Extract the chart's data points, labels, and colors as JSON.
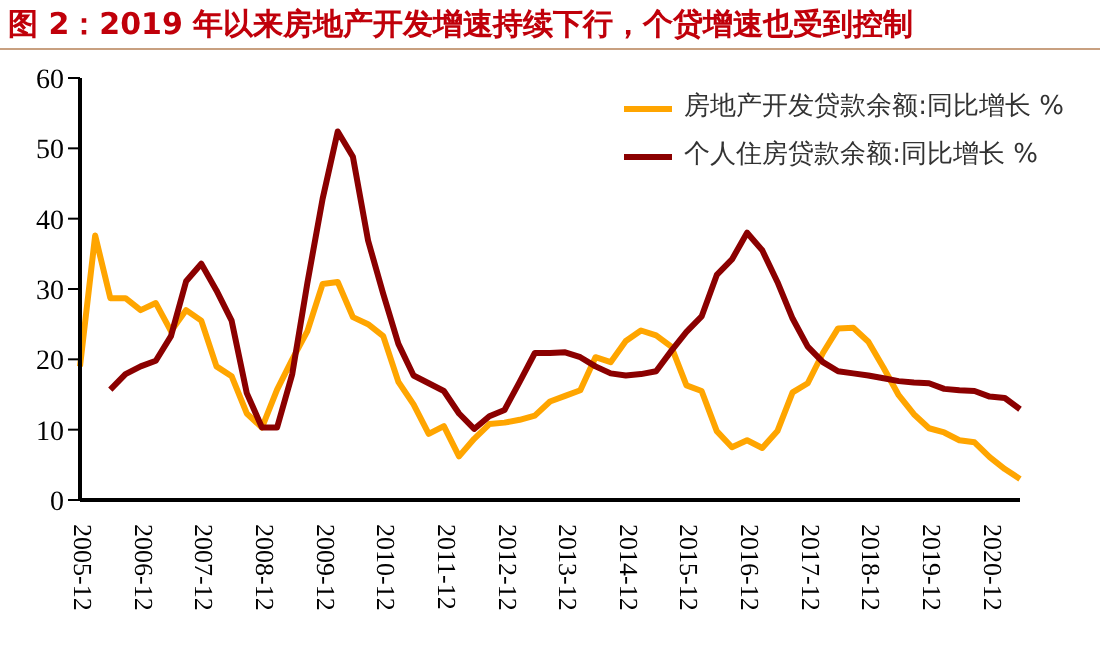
{
  "chart_data": {
    "type": "line",
    "title": "图 2：2019 年以来房地产开发增速持续下行，个贷增速也受到控制",
    "categories": [
      "2005-12",
      null,
      null,
      null,
      "2006-12",
      null,
      null,
      null,
      "2007-12",
      null,
      null,
      null,
      "2008-12",
      null,
      null,
      null,
      "2009-12",
      null,
      null,
      null,
      "2010-12",
      null,
      null,
      null,
      "2011-12",
      null,
      null,
      null,
      "2012-12",
      null,
      null,
      null,
      "2013-12",
      null,
      null,
      null,
      "2014-12",
      null,
      null,
      null,
      "2015-12",
      null,
      null,
      null,
      "2016-12",
      null,
      null,
      null,
      "2017-12",
      null,
      null,
      null,
      "2018-12",
      null,
      null,
      null,
      "2019-12",
      null,
      null,
      null,
      "2020-12",
      null,
      null
    ],
    "series": [
      {
        "name": "房地产开发贷款余额:同比增长 %",
        "color": "#ffa500",
        "values": [
          19,
          37.6,
          28.7,
          28.7,
          27,
          28,
          24,
          27,
          25.5,
          19,
          17.6,
          12.3,
          10.3,
          15.7,
          20,
          24,
          30.7,
          31,
          26,
          25,
          23.3,
          16.8,
          13.6,
          9.4,
          10.5,
          6.2,
          8.7,
          10.8,
          11,
          11.4,
          12,
          14,
          14.8,
          15.6,
          20.3,
          19.6,
          22.6,
          24.1,
          23.4,
          21.8,
          16.3,
          15.5,
          9.8,
          7.5,
          8.5,
          7.4,
          9.8,
          15.3,
          16.6,
          20.9,
          24.4,
          24.5,
          22.5,
          18.8,
          14.9,
          12.2,
          10.2,
          9.6,
          8.5,
          8.2,
          6.1,
          4.4,
          3
        ]
      },
      {
        "name": "个人住房贷款余额:同比增长 %",
        "color": "#8b0000",
        "values": [
          null,
          null,
          15.7,
          17.9,
          19,
          19.8,
          23.3,
          31.1,
          33.6,
          29.8,
          25.5,
          15.2,
          10.3,
          10.3,
          17.9,
          30.9,
          42.8,
          52.4,
          48.8,
          36.9,
          29.3,
          22.2,
          17.7,
          16.6,
          15.5,
          12.3,
          10.1,
          11.9,
          12.8,
          16.8,
          20.9,
          20.9,
          21,
          20.3,
          19,
          18,
          17.7,
          17.9,
          18.3,
          21.2,
          23.9,
          26.1,
          32,
          34.2,
          38,
          35.5,
          31,
          25.8,
          21.8,
          19.6,
          18.3,
          18,
          17.7,
          17.3,
          16.9,
          16.7,
          16.6,
          15.8,
          15.6,
          15.5,
          14.7,
          14.5,
          12.9
        ]
      }
    ],
    "ylim": [
      0,
      60
    ],
    "yticks": [
      0,
      10,
      20,
      30,
      40,
      50,
      60
    ],
    "legend": "top right",
    "marker": "none",
    "line_style": "solid"
  }
}
